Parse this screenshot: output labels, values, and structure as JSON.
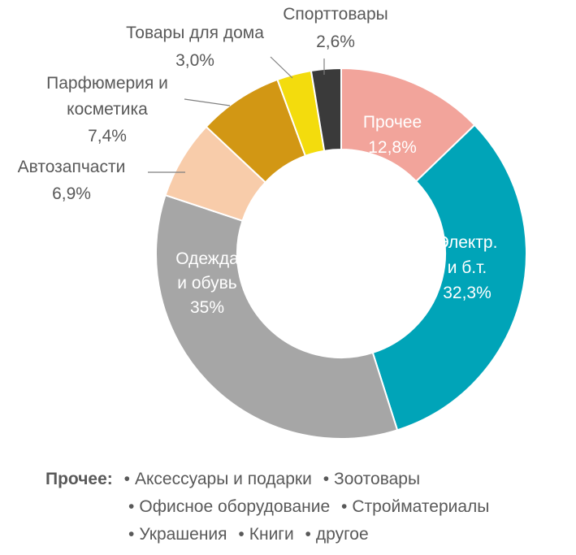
{
  "colors": {
    "other": "#f2a49b",
    "electronics": "#00a4b8",
    "clothing": "#a6a6a6",
    "autoparts": "#f8ccaa",
    "perfume": "#d29714",
    "home": "#f3dc0d",
    "sports": "#3a3a3a",
    "label_dark": "#595959",
    "label_light": "#ffffff"
  },
  "chart_data": {
    "type": "pie",
    "donut": true,
    "slices": [
      {
        "label": "Прочее",
        "value": 12.8,
        "value_label": "12,8%",
        "color_key": "other"
      },
      {
        "label": "Электр. и б.т.",
        "value": 32.3,
        "value_label": "32,3%",
        "color_key": "electronics"
      },
      {
        "label": "Одежда и обувь",
        "value": 35,
        "value_label": "35%",
        "color_key": "clothing"
      },
      {
        "label": "Автозапчасти",
        "value": 6.9,
        "value_label": "6,9%",
        "color_key": "autoparts"
      },
      {
        "label": "Парфюмерия и косметика",
        "value": 7.4,
        "value_label": "7,4%",
        "color_key": "perfume"
      },
      {
        "label": "Товары для дома",
        "value": 3.0,
        "value_label": "3,0%",
        "color_key": "home"
      },
      {
        "label": "Спорттовары",
        "value": 2.6,
        "value_label": "2,6%",
        "color_key": "sports"
      }
    ]
  },
  "labels": {
    "other": [
      "Прочее",
      "12,8%"
    ],
    "electronics": [
      "Электр.",
      "и б.т.",
      "32,3%"
    ],
    "clothing": [
      "Одежда",
      "и обувь",
      "35%"
    ],
    "autoparts": [
      "Автозапчасти",
      "6,9%"
    ],
    "perfume": [
      "Парфюмерия и",
      "косметика",
      "7,4%"
    ],
    "home": [
      "Товары для дома",
      "3,0%"
    ],
    "sports": [
      "Спорттовары",
      "2,6%"
    ]
  },
  "note": {
    "heading": "Прочее:",
    "bullet": "•",
    "lines": [
      [
        "Аксессуары и подарки",
        "Зоотовары"
      ],
      [
        "Офисное оборудование",
        "Стройматериалы"
      ],
      [
        "Украшения",
        "Книги",
        "другое"
      ]
    ]
  }
}
